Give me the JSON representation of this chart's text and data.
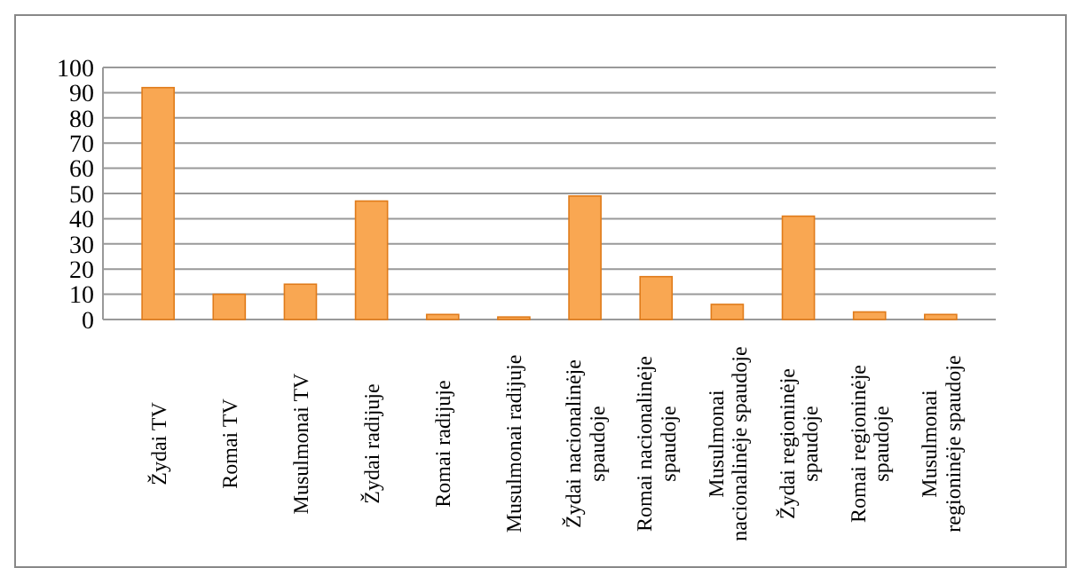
{
  "chart_data": {
    "type": "bar",
    "categories": [
      "Žydai  TV",
      "Romai TV",
      "Musulmonai TV",
      "Žydai  radijuje",
      "Romai radijuje",
      "Musulmonai radijuje",
      "Žydai nacionalinėje\nspaudoje",
      "Romai nacionalinėje\nspaudoje",
      "Musulmonai\nnacionalinėje spaudoje",
      "Žydai regioninėje\nspaudoje",
      "Romai regioninėje\nspaudoje",
      "Musulmonai\nregioninėje spaudoje"
    ],
    "values": [
      92,
      10,
      14,
      47,
      2,
      1,
      49,
      17,
      6,
      41,
      3,
      2
    ],
    "color": "#f9a752",
    "ylim": [
      0,
      100
    ],
    "yticks": [
      0,
      10,
      20,
      30,
      40,
      50,
      60,
      70,
      80,
      90,
      100
    ],
    "grid": true
  }
}
